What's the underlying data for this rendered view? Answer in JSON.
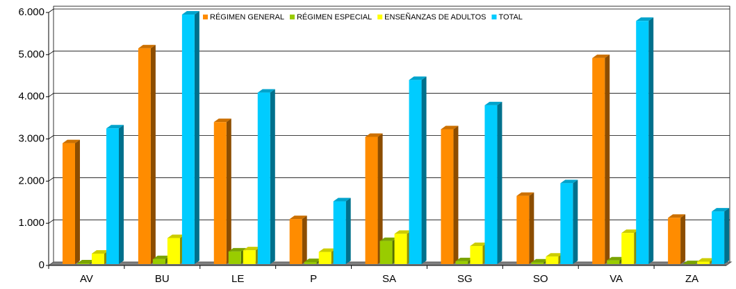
{
  "chart_data": {
    "type": "bar3d",
    "categories": [
      "AV",
      "BU",
      "LE",
      "P",
      "SA",
      "SG",
      "SO",
      "VA",
      "ZA"
    ],
    "series": [
      {
        "name": "RÉGIMEN GENERAL",
        "color": "#ff8c00",
        "values": [
          2900,
          5150,
          3400,
          1100,
          3050,
          3230,
          1650,
          4920,
          1130
        ]
      },
      {
        "name": "RÉGIMEN ESPECIAL",
        "color": "#99cc00",
        "values": [
          50,
          150,
          330,
          80,
          580,
          100,
          70,
          120,
          30
        ]
      },
      {
        "name": "ENSEÑANZAS DE ADULTOS",
        "color": "#ffff00",
        "values": [
          280,
          650,
          360,
          320,
          750,
          460,
          210,
          770,
          90
        ]
      },
      {
        "name": "TOTAL",
        "color": "#00ccff",
        "values": [
          3250,
          5950,
          4100,
          1520,
          4400,
          3800,
          1950,
          5800,
          1280
        ]
      }
    ],
    "ylim": [
      0,
      6000
    ],
    "yticks": [
      0,
      {
        "value": 1000,
        "label": "1.000"
      },
      {
        "value": 2000,
        "label": "2.000"
      },
      {
        "value": 3000,
        "label": "3.000"
      },
      {
        "value": 4000,
        "label": "4.000"
      },
      {
        "value": 5000,
        "label": "5.000"
      },
      {
        "value": 6000,
        "label": "6.000"
      }
    ],
    "grid": true
  }
}
